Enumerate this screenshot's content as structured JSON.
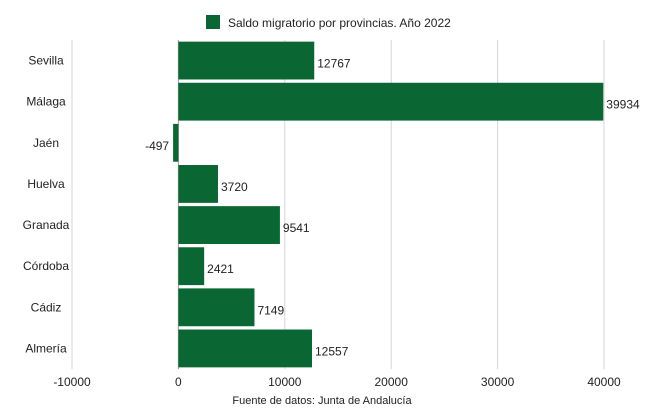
{
  "chart_data": {
    "type": "bar",
    "orientation": "horizontal",
    "categories": [
      "Sevilla",
      "Málaga",
      "Jaén",
      "Huelva",
      "Granada",
      "Córdoba",
      "Cádiz",
      "Almería"
    ],
    "series": [
      {
        "name": "Saldo migratorio por provincias. Año 2022",
        "values": [
          12767,
          39934,
          -497,
          3720,
          9541,
          2421,
          7149,
          12557
        ]
      }
    ],
    "data_labels": [
      "12767",
      "39934",
      "-497",
      "3720",
      "9541",
      "2421",
      "7149",
      "12557"
    ],
    "xlim": [
      -10000,
      40000
    ],
    "xticks": [
      -10000,
      0,
      10000,
      20000,
      30000,
      40000
    ],
    "xtick_labels": [
      "-10000",
      "0",
      "10000",
      "20000",
      "30000",
      "40000"
    ],
    "grid": true,
    "legend_position": "top",
    "bar_color": "#0a6632",
    "source": "Fuente de datos: Junta de Andalucía"
  }
}
